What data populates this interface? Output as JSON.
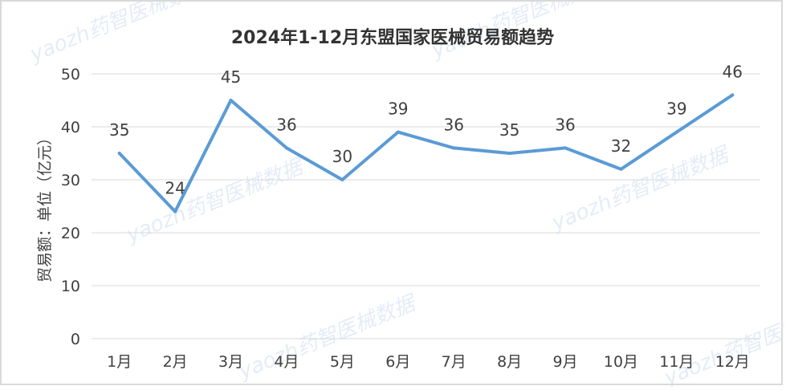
{
  "chart_data": {
    "type": "line",
    "title": "2024年1-12月东盟国家医械贸易额趋势",
    "xlabel": "",
    "ylabel": "贸易额：单位（亿元）",
    "categories": [
      "1月",
      "2月",
      "3月",
      "4月",
      "5月",
      "6月",
      "7月",
      "8月",
      "9月",
      "10月",
      "11月",
      "12月"
    ],
    "series": [
      {
        "values": [
          35,
          24,
          45,
          36,
          30,
          39,
          36,
          35,
          36,
          32,
          39,
          46
        ],
        "data_labels": [
          "35",
          "24",
          "45",
          "36",
          "30",
          "39",
          "36",
          "35",
          "36",
          "32",
          "39",
          "46"
        ],
        "color": "#5b9bd5"
      }
    ],
    "ylim": [
      0,
      50
    ],
    "yticks": [
      0,
      10,
      20,
      30,
      40,
      50
    ],
    "grid": true,
    "gridline_color": "#d9d9d9",
    "legend": "none"
  },
  "watermark": {
    "text": "yaozh药智医械数据"
  }
}
